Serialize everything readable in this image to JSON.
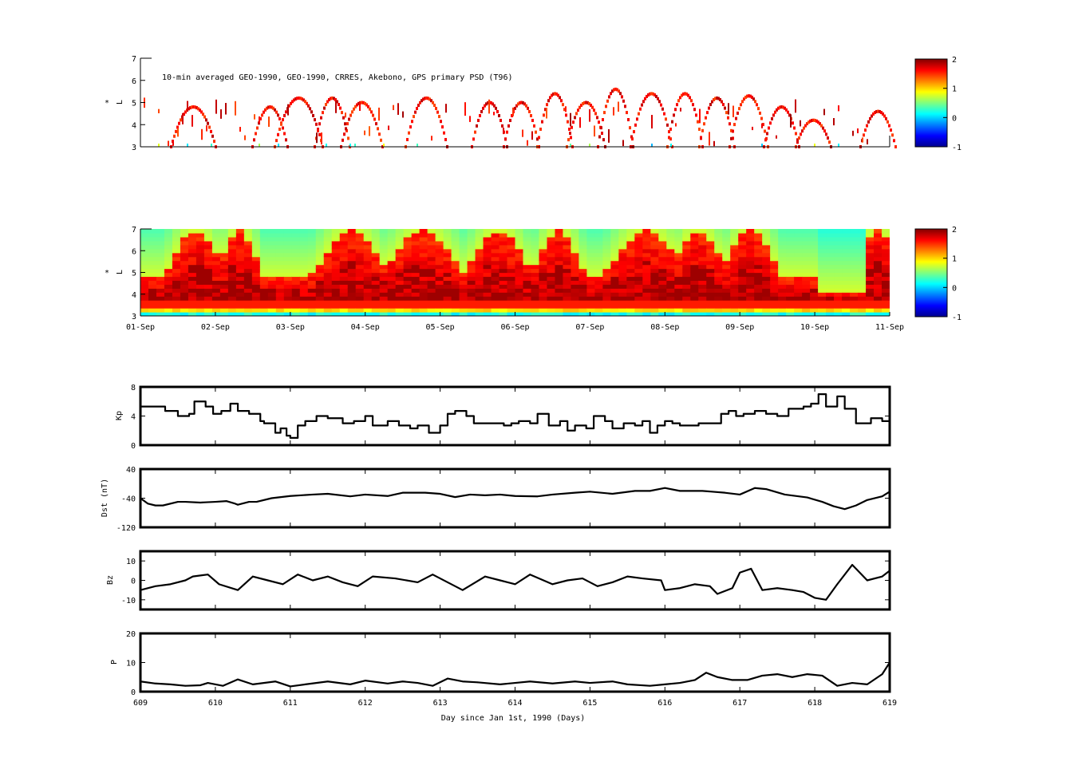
{
  "chart_data": [
    {
      "id": "psd-obs",
      "type": "heatmap",
      "title": "10-min averaged GEO-1990, GEO-1990, CRRES, Akebono, GPS  primary PSD (T96)",
      "ylabel": "L",
      "ylabel_superscript": "*",
      "ylim": [
        3,
        7
      ],
      "yticks": [
        3,
        4,
        5,
        6,
        7
      ],
      "xlim": [
        609,
        619
      ],
      "colorbar": {
        "ticks": [
          2,
          1,
          0,
          -1
        ],
        "range": [
          -1,
          2
        ]
      }
    },
    {
      "id": "psd-reanalysis",
      "type": "heatmap",
      "ylabel": "L",
      "ylabel_superscript": "*",
      "ylim": [
        3,
        7
      ],
      "yticks": [
        3,
        4,
        5,
        6,
        7
      ],
      "xlim": [
        609,
        619
      ],
      "xticklabels": [
        "01-Sep",
        "02-Sep",
        "03-Sep",
        "04-Sep",
        "05-Sep",
        "06-Sep",
        "07-Sep",
        "08-Sep",
        "09-Sep",
        "10-Sep",
        "11-Sep"
      ],
      "colorbar": {
        "ticks": [
          2,
          1,
          0,
          -1
        ],
        "range": [
          -1,
          2
        ]
      }
    },
    {
      "id": "kp",
      "type": "line",
      "ylabel": "Kp",
      "ylim": [
        0,
        8
      ],
      "yticks": [
        0,
        4,
        8
      ],
      "xlim": [
        609,
        619
      ],
      "series": [
        {
          "color": "#000000",
          "x": [
            609.0,
            609.33,
            609.5,
            609.65,
            609.72,
            609.87,
            609.97,
            610.08,
            610.2,
            610.3,
            610.45,
            610.6,
            610.65,
            610.8,
            610.87,
            610.95,
            611.0,
            611.1,
            611.2,
            611.35,
            611.5,
            611.7,
            611.85,
            612.0,
            612.1,
            612.3,
            612.45,
            612.6,
            612.7,
            612.85,
            613.0,
            613.1,
            613.2,
            613.35,
            613.45,
            613.6,
            613.85,
            613.95,
            614.05,
            614.2,
            614.3,
            614.45,
            614.6,
            614.7,
            614.8,
            614.95,
            615.05,
            615.2,
            615.3,
            615.45,
            615.6,
            615.7,
            615.8,
            615.9,
            616.0,
            616.1,
            616.2,
            616.45,
            616.6,
            616.75,
            616.85,
            616.95,
            617.05,
            617.2,
            617.35,
            617.5,
            617.65,
            617.85,
            617.95,
            618.05,
            618.15,
            618.3,
            618.4,
            618.55,
            618.75,
            618.9,
            619.0
          ],
          "y": [
            5.3,
            4.7,
            4.0,
            4.3,
            6.0,
            5.3,
            4.3,
            4.7,
            5.7,
            4.7,
            4.3,
            3.3,
            3.0,
            1.7,
            2.3,
            1.3,
            1.0,
            2.7,
            3.3,
            4.0,
            3.7,
            3.0,
            3.3,
            4.0,
            2.7,
            3.3,
            2.7,
            2.3,
            2.7,
            1.7,
            2.7,
            4.3,
            4.7,
            4.0,
            3.0,
            3.0,
            2.7,
            3.0,
            3.3,
            3.0,
            4.3,
            2.7,
            3.3,
            2.0,
            2.7,
            2.3,
            4.0,
            3.3,
            2.3,
            3.0,
            2.7,
            3.3,
            1.7,
            2.7,
            3.3,
            3.0,
            2.7,
            3.0,
            3.0,
            4.3,
            4.7,
            4.0,
            4.3,
            4.7,
            4.3,
            4.0,
            5.0,
            5.3,
            5.7,
            7.0,
            5.3,
            6.7,
            5.0,
            3.0,
            3.7,
            3.3,
            4.0
          ]
        }
      ]
    },
    {
      "id": "dst",
      "type": "line",
      "ylabel": "Dst (nT)",
      "ylim": [
        -120,
        40
      ],
      "yticks": [
        -120,
        -40,
        40
      ],
      "xlim": [
        609,
        619
      ],
      "series": [
        {
          "color": "#000000",
          "x": [
            609.0,
            609.1,
            609.2,
            609.3,
            609.5,
            609.6,
            609.8,
            610.0,
            610.15,
            610.25,
            610.3,
            610.45,
            610.55,
            610.75,
            611.0,
            611.3,
            611.5,
            611.8,
            612.0,
            612.3,
            612.5,
            612.8,
            613.0,
            613.2,
            613.4,
            613.6,
            613.8,
            614.0,
            614.3,
            614.5,
            614.8,
            615.0,
            615.3,
            615.6,
            615.8,
            616.0,
            616.2,
            616.5,
            616.8,
            617.0,
            617.2,
            617.35,
            617.6,
            617.9,
            618.1,
            618.25,
            618.4,
            618.55,
            618.7,
            618.9,
            619.0
          ],
          "y": [
            -40,
            -55,
            -60,
            -60,
            -50,
            -50,
            -52,
            -50,
            -48,
            -54,
            -58,
            -50,
            -50,
            -40,
            -34,
            -30,
            -28,
            -35,
            -30,
            -34,
            -25,
            -25,
            -28,
            -37,
            -30,
            -32,
            -30,
            -34,
            -35,
            -30,
            -25,
            -22,
            -28,
            -20,
            -20,
            -12,
            -20,
            -20,
            -25,
            -30,
            -12,
            -15,
            -30,
            -38,
            -50,
            -62,
            -70,
            -60,
            -45,
            -35,
            -22
          ]
        }
      ]
    },
    {
      "id": "bz",
      "type": "line",
      "ylabel": "Bz",
      "ylim": [
        -15,
        15
      ],
      "yticks": [
        -10,
        0,
        10
      ],
      "xlim": [
        609,
        619
      ],
      "series": [
        {
          "color": "#000000",
          "x": [
            609.0,
            609.2,
            609.4,
            609.6,
            609.7,
            609.9,
            610.05,
            610.3,
            610.5,
            610.7,
            610.9,
            611.1,
            611.3,
            611.5,
            611.7,
            611.9,
            612.1,
            612.4,
            612.7,
            612.9,
            613.1,
            613.3,
            613.6,
            613.8,
            614.0,
            614.2,
            614.5,
            614.7,
            614.9,
            615.1,
            615.3,
            615.5,
            615.7,
            615.95,
            616.0,
            616.2,
            616.4,
            616.6,
            616.7,
            616.9,
            617.0,
            617.15,
            617.3,
            617.5,
            617.7,
            617.85,
            618.0,
            618.15,
            618.3,
            618.5,
            618.7,
            618.9,
            619.0
          ],
          "y": [
            -5,
            -3,
            -2,
            0,
            2,
            3,
            -2,
            -5,
            2,
            0,
            -2,
            3,
            0,
            2,
            -1,
            -3,
            2,
            1,
            -1,
            3,
            -1,
            -5,
            2,
            0,
            -2,
            3,
            -2,
            0,
            1,
            -3,
            -1,
            2,
            1,
            0,
            -5,
            -4,
            -2,
            -3,
            -7,
            -4,
            4,
            6,
            -5,
            -4,
            -5,
            -6,
            -9,
            -10,
            -2,
            8,
            0,
            2,
            5
          ]
        }
      ]
    },
    {
      "id": "pressure",
      "type": "line",
      "ylabel": "P",
      "ylim": [
        0,
        20
      ],
      "yticks": [
        0,
        10,
        20
      ],
      "xlim": [
        609,
        619
      ],
      "xticks": [
        609,
        610,
        611,
        612,
        613,
        614,
        615,
        616,
        617,
        618,
        619
      ],
      "xlabel": "Day since Jan 1st, 1990 (Days)",
      "series": [
        {
          "color": "#000000",
          "x": [
            609.0,
            609.2,
            609.4,
            609.6,
            609.8,
            609.9,
            610.1,
            610.3,
            610.5,
            610.8,
            611.0,
            611.2,
            611.5,
            611.8,
            612.0,
            612.3,
            612.5,
            612.7,
            612.9,
            613.1,
            613.3,
            613.5,
            613.8,
            614.0,
            614.2,
            614.5,
            614.8,
            615.0,
            615.3,
            615.5,
            615.8,
            616.0,
            616.2,
            616.4,
            616.55,
            616.7,
            616.9,
            617.1,
            617.3,
            617.5,
            617.7,
            617.9,
            618.1,
            618.3,
            618.5,
            618.7,
            618.9,
            619.0
          ],
          "y": [
            3.5,
            2.8,
            2.5,
            2.0,
            2.2,
            3.0,
            2.0,
            4.2,
            2.5,
            3.5,
            1.8,
            2.5,
            3.5,
            2.5,
            3.8,
            2.8,
            3.5,
            3.0,
            2.0,
            4.5,
            3.5,
            3.2,
            2.5,
            3.0,
            3.5,
            2.8,
            3.5,
            3.0,
            3.5,
            2.5,
            2.0,
            2.5,
            3.0,
            4.0,
            6.5,
            5.0,
            4.0,
            4.0,
            5.5,
            6.0,
            5.0,
            6.0,
            5.5,
            2.0,
            3.0,
            2.5,
            6.0,
            10.0
          ]
        }
      ]
    }
  ]
}
